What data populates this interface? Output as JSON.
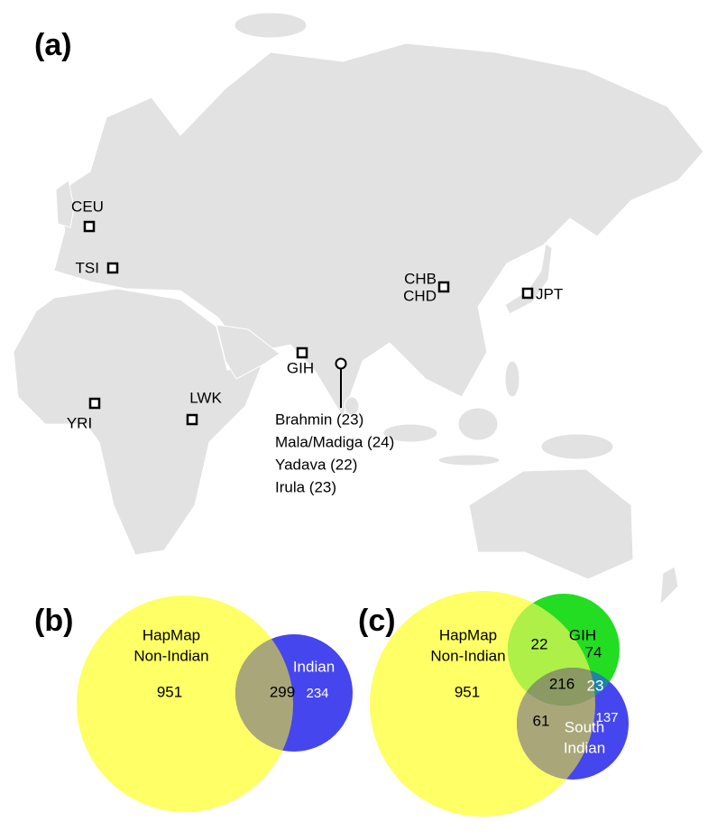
{
  "panels": {
    "a": {
      "label": "(a)",
      "populations": [
        {
          "label": "CEU"
        },
        {
          "label": "TSI"
        },
        {
          "label": "CHB"
        },
        {
          "label": "CHD"
        },
        {
          "label": "JPT"
        },
        {
          "label": "GIH"
        },
        {
          "label": "YRI"
        },
        {
          "label": "LWK"
        }
      ],
      "study_groups": [
        {
          "label": "Brahmin (23)"
        },
        {
          "label": "Mala/Madiga (24)"
        },
        {
          "label": "Yadava (22)"
        },
        {
          "label": "Irula (23)"
        }
      ]
    },
    "b": {
      "label": "(b)",
      "sets": [
        {
          "name_lines": [
            "HapMap",
            "Non-Indian"
          ]
        },
        {
          "name_lines": [
            "Indian"
          ]
        }
      ],
      "regions": {
        "hapmap_only": 951,
        "hapmap_and_indian": 299,
        "indian_only": 234
      }
    },
    "c": {
      "label": "(c)",
      "sets": [
        {
          "name_lines": [
            "HapMap",
            "Non-Indian"
          ]
        },
        {
          "name_lines": [
            "GIH"
          ]
        },
        {
          "name_lines": [
            "South",
            "Indian"
          ]
        }
      ],
      "regions": {
        "hapmap_only": 951,
        "hapmap_and_gih": 22,
        "gih_only": 74,
        "all_three": 216,
        "gih_and_south_indian": 23,
        "south_indian_only": 137,
        "hapmap_and_south_indian": 61
      }
    }
  }
}
